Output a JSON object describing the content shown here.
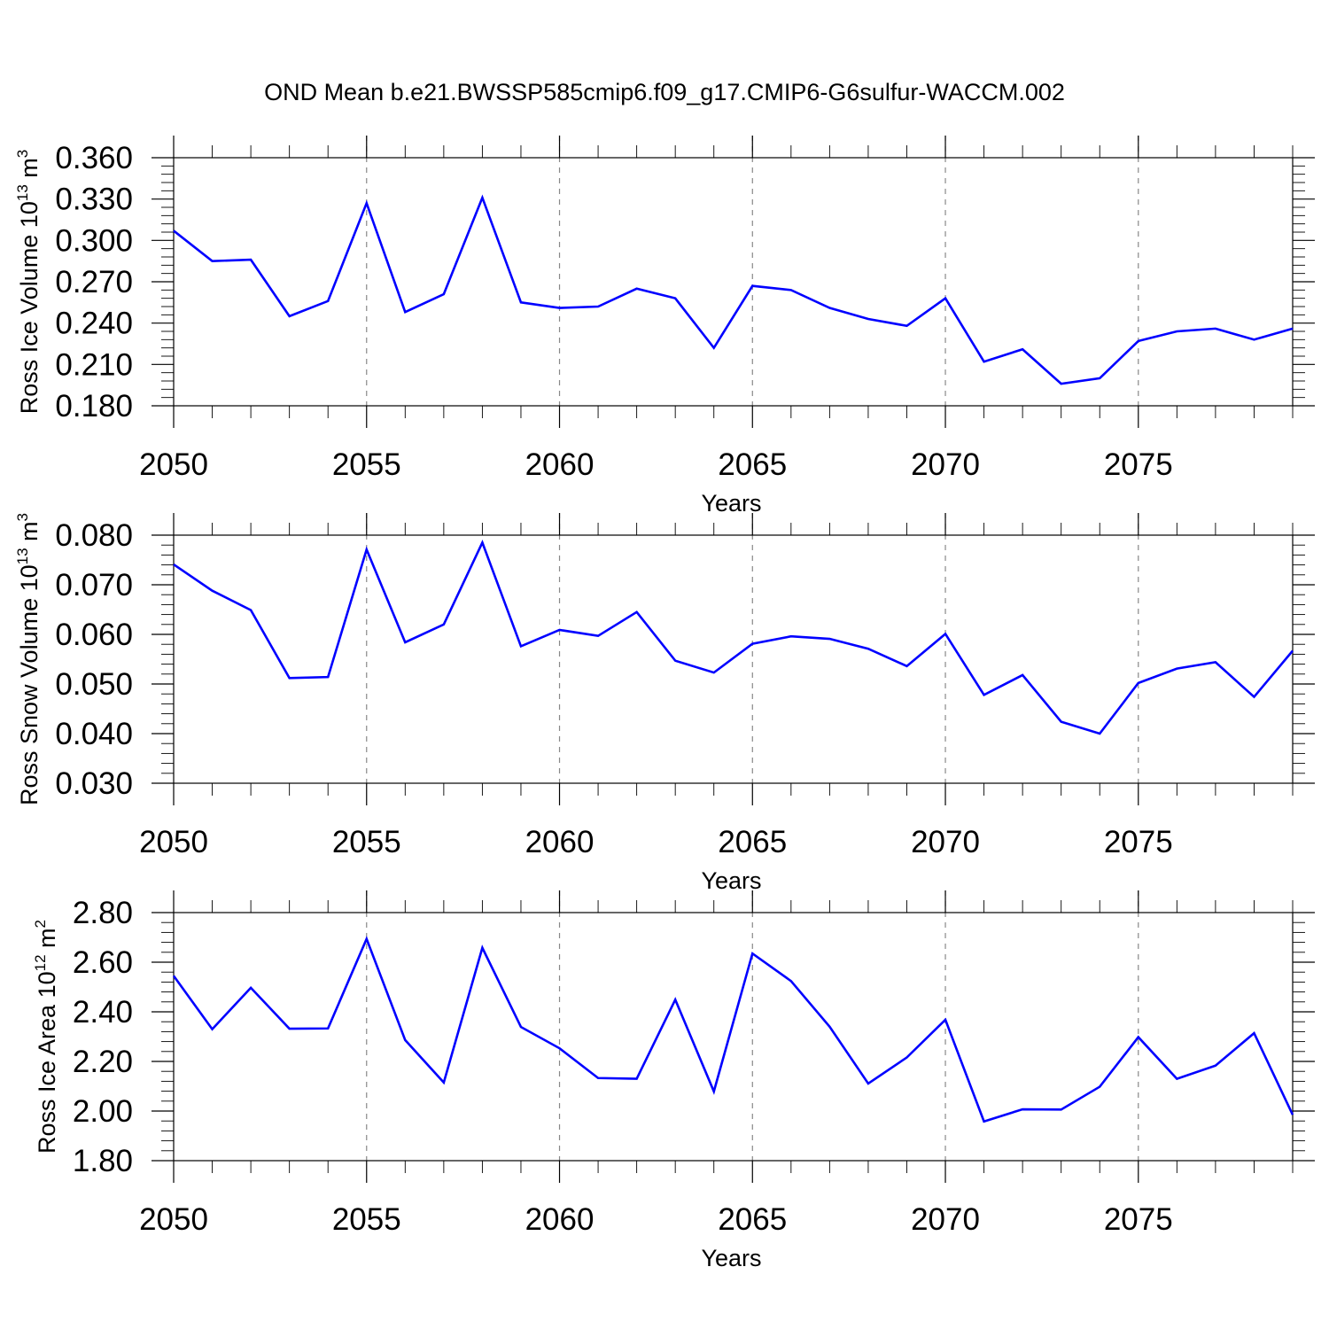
{
  "title": "OND Mean b.e21.BWSSP585cmip6.f09_g17.CMIP6-G6sulfur-WACCM.002",
  "colors": {
    "series": "#0000ff",
    "grid": "#888888",
    "axis": "#000000"
  },
  "chart_data": [
    {
      "type": "line",
      "ylabel": {
        "text": "Ross Ice Volume 10",
        "exponent": "13",
        "unit": " m",
        "unit_exponent": "3"
      },
      "xlabel": "Years",
      "xlim": [
        2050,
        2079
      ],
      "ylim": [
        0.18,
        0.36
      ],
      "x_ticks": [
        "2050",
        "2055",
        "2060",
        "2065",
        "2070",
        "2075"
      ],
      "y_ticks": [
        "0.180",
        "0.210",
        "0.240",
        "0.270",
        "0.300",
        "0.330",
        "0.360"
      ],
      "grid": "vertical dashed at major x ticks",
      "x": [
        2050,
        2051,
        2052,
        2053,
        2054,
        2055,
        2056,
        2057,
        2058,
        2059,
        2060,
        2061,
        2062,
        2063,
        2064,
        2065,
        2066,
        2067,
        2068,
        2069,
        2070,
        2071,
        2072,
        2073,
        2074,
        2075,
        2076,
        2077,
        2078,
        2079
      ],
      "series": [
        {
          "values": [
            0.307,
            0.285,
            0.286,
            0.245,
            0.256,
            0.327,
            0.248,
            0.261,
            0.331,
            0.255,
            0.251,
            0.252,
            0.265,
            0.258,
            0.222,
            0.267,
            0.264,
            0.251,
            0.243,
            0.238,
            0.258,
            0.212,
            0.221,
            0.196,
            0.2,
            0.227,
            0.234,
            0.236,
            0.228,
            0.236
          ]
        }
      ]
    },
    {
      "type": "line",
      "ylabel": {
        "text": "Ross Snow Volume 10",
        "exponent": "13",
        "unit": " m",
        "unit_exponent": "3"
      },
      "xlabel": "Years",
      "xlim": [
        2050,
        2079
      ],
      "ylim": [
        0.03,
        0.08
      ],
      "x_ticks": [
        "2050",
        "2055",
        "2060",
        "2065",
        "2070",
        "2075"
      ],
      "y_ticks": [
        "0.030",
        "0.040",
        "0.050",
        "0.060",
        "0.070",
        "0.080"
      ],
      "grid": "vertical dashed at major x ticks",
      "x": [
        2050,
        2051,
        2052,
        2053,
        2054,
        2055,
        2056,
        2057,
        2058,
        2059,
        2060,
        2061,
        2062,
        2063,
        2064,
        2065,
        2066,
        2067,
        2068,
        2069,
        2070,
        2071,
        2072,
        2073,
        2074,
        2075,
        2076,
        2077,
        2078,
        2079
      ],
      "series": [
        {
          "values": [
            0.0741,
            0.0688,
            0.0649,
            0.0512,
            0.0514,
            0.0771,
            0.0584,
            0.062,
            0.0785,
            0.0576,
            0.0609,
            0.0597,
            0.0645,
            0.0547,
            0.0523,
            0.0581,
            0.0596,
            0.0591,
            0.0571,
            0.0536,
            0.0601,
            0.0478,
            0.0518,
            0.0424,
            0.04,
            0.0502,
            0.0531,
            0.0544,
            0.0474,
            0.0567
          ]
        }
      ]
    },
    {
      "type": "line",
      "ylabel": {
        "text": "Ross Ice Area 10",
        "exponent": "12",
        "unit": " m",
        "unit_exponent": "2"
      },
      "xlabel": "Years",
      "xlim": [
        2050,
        2079
      ],
      "ylim": [
        1.8,
        2.8
      ],
      "x_ticks": [
        "2050",
        "2055",
        "2060",
        "2065",
        "2070",
        "2075"
      ],
      "y_ticks": [
        "1.80",
        "2.00",
        "2.20",
        "2.40",
        "2.60",
        "2.80"
      ],
      "grid": "vertical dashed at major x ticks",
      "x": [
        2050,
        2051,
        2052,
        2053,
        2054,
        2055,
        2056,
        2057,
        2058,
        2059,
        2060,
        2061,
        2062,
        2063,
        2064,
        2065,
        2066,
        2067,
        2068,
        2069,
        2070,
        2071,
        2072,
        2073,
        2074,
        2075,
        2076,
        2077,
        2078,
        2079
      ],
      "series": [
        {
          "values": [
            2.545,
            2.33,
            2.497,
            2.332,
            2.333,
            2.694,
            2.286,
            2.115,
            2.658,
            2.339,
            2.253,
            2.133,
            2.13,
            2.449,
            2.079,
            2.635,
            2.524,
            2.34,
            2.111,
            2.216,
            2.368,
            1.958,
            2.007,
            2.006,
            2.098,
            2.298,
            2.13,
            2.183,
            2.314,
            1.985
          ]
        }
      ]
    }
  ]
}
